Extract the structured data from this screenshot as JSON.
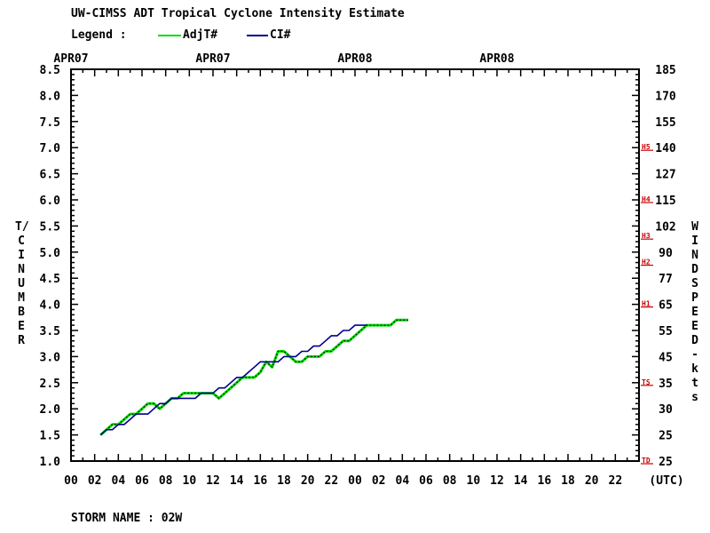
{
  "title": "UW-CIMSS ADT Tropical Cyclone Intensity Estimate",
  "legend": {
    "label": "Legend :",
    "entries": [
      {
        "name": "AdjT#",
        "color": "#00dd00"
      },
      {
        "name": "CI#",
        "color": "#00008b"
      }
    ]
  },
  "footer": {
    "storm_name": "STORM NAME : 02W"
  },
  "left_axis_title": "T/CI NUMBER",
  "right_axis_title": "WIND SPEED-kts",
  "utc_label": "(UTC)",
  "chart_data": {
    "type": "line",
    "title": "UW-CIMSS ADT Tropical Cyclone Intensity Estimate",
    "xlabel": "(UTC)",
    "ylabel": "T/CI NUMBER",
    "y2label": "WIND SPEED-kts",
    "x_unit": "hours since APR07 00 UTC",
    "xlim": [
      0,
      48
    ],
    "ylim": [
      1.0,
      8.5
    ],
    "date_labels": [
      {
        "label": "APR07",
        "hour": 0
      },
      {
        "label": "APR07",
        "hour": 12
      },
      {
        "label": "APR08",
        "hour": 24
      },
      {
        "label": "APR08",
        "hour": 36
      }
    ],
    "x_ticks": [
      "00",
      "02",
      "04",
      "06",
      "08",
      "10",
      "12",
      "14",
      "16",
      "18",
      "20",
      "22",
      "00",
      "02",
      "04",
      "06",
      "08",
      "10",
      "12",
      "14",
      "16",
      "18",
      "20",
      "22"
    ],
    "y_ticks": [
      "1.0",
      "1.5",
      "2.0",
      "2.5",
      "3.0",
      "3.5",
      "4.0",
      "4.5",
      "5.0",
      "5.5",
      "6.0",
      "6.5",
      "7.0",
      "7.5",
      "8.0",
      "8.5"
    ],
    "wind_ticks": [
      {
        "t": 1.0,
        "label": "25"
      },
      {
        "t": 1.5,
        "label": "25"
      },
      {
        "t": 2.0,
        "label": "30"
      },
      {
        "t": 2.5,
        "label": "35"
      },
      {
        "t": 3.0,
        "label": "45"
      },
      {
        "t": 3.5,
        "label": "55"
      },
      {
        "t": 4.0,
        "label": "65"
      },
      {
        "t": 4.5,
        "label": "77"
      },
      {
        "t": 5.0,
        "label": "90"
      },
      {
        "t": 5.5,
        "label": "102"
      },
      {
        "t": 6.0,
        "label": "115"
      },
      {
        "t": 6.5,
        "label": "127"
      },
      {
        "t": 7.0,
        "label": "140"
      },
      {
        "t": 7.5,
        "label": "155"
      },
      {
        "t": 8.0,
        "label": "170"
      },
      {
        "t": 8.5,
        "label": "185"
      }
    ],
    "category_marks": [
      {
        "label": "TD",
        "t": 1.0
      },
      {
        "label": "TS",
        "t": 2.5
      },
      {
        "label": "H1",
        "t": 4.0
      },
      {
        "label": "H2",
        "t": 4.8
      },
      {
        "label": "H3",
        "t": 5.3
      },
      {
        "label": "H4",
        "t": 6.0
      },
      {
        "label": "H5",
        "t": 7.0
      }
    ],
    "series": [
      {
        "name": "AdjT#",
        "color": "#00dd00",
        "points": [
          [
            2.5,
            1.5
          ],
          [
            3.0,
            1.6
          ],
          [
            3.5,
            1.7
          ],
          [
            4.0,
            1.7
          ],
          [
            4.5,
            1.8
          ],
          [
            5.0,
            1.9
          ],
          [
            5.5,
            1.9
          ],
          [
            6.0,
            2.0
          ],
          [
            6.5,
            2.1
          ],
          [
            7.0,
            2.1
          ],
          [
            7.5,
            2.0
          ],
          [
            8.0,
            2.1
          ],
          [
            8.5,
            2.2
          ],
          [
            9.0,
            2.2
          ],
          [
            9.5,
            2.3
          ],
          [
            10.0,
            2.3
          ],
          [
            10.5,
            2.3
          ],
          [
            11.0,
            2.3
          ],
          [
            11.5,
            2.3
          ],
          [
            12.0,
            2.3
          ],
          [
            12.5,
            2.2
          ],
          [
            13.0,
            2.3
          ],
          [
            13.5,
            2.4
          ],
          [
            14.0,
            2.5
          ],
          [
            14.5,
            2.6
          ],
          [
            15.0,
            2.6
          ],
          [
            15.5,
            2.6
          ],
          [
            16.0,
            2.7
          ],
          [
            16.5,
            2.9
          ],
          [
            17.0,
            2.8
          ],
          [
            17.5,
            3.1
          ],
          [
            18.0,
            3.1
          ],
          [
            18.5,
            3.0
          ],
          [
            19.0,
            2.9
          ],
          [
            19.5,
            2.9
          ],
          [
            20.0,
            3.0
          ],
          [
            20.5,
            3.0
          ],
          [
            21.0,
            3.0
          ],
          [
            21.5,
            3.1
          ],
          [
            22.0,
            3.1
          ],
          [
            22.5,
            3.2
          ],
          [
            23.0,
            3.3
          ],
          [
            23.5,
            3.3
          ],
          [
            24.0,
            3.4
          ],
          [
            24.5,
            3.5
          ],
          [
            25.0,
            3.6
          ],
          [
            25.5,
            3.6
          ],
          [
            26.0,
            3.6
          ],
          [
            26.5,
            3.6
          ],
          [
            27.0,
            3.6
          ],
          [
            27.5,
            3.7
          ],
          [
            28.0,
            3.7
          ],
          [
            28.5,
            3.7
          ]
        ]
      },
      {
        "name": "CI#",
        "color": "#00008b",
        "points": [
          [
            2.5,
            1.5
          ],
          [
            3.0,
            1.6
          ],
          [
            3.5,
            1.6
          ],
          [
            4.0,
            1.7
          ],
          [
            4.5,
            1.7
          ],
          [
            5.0,
            1.8
          ],
          [
            5.5,
            1.9
          ],
          [
            6.0,
            1.9
          ],
          [
            6.5,
            1.9
          ],
          [
            7.0,
            2.0
          ],
          [
            7.5,
            2.1
          ],
          [
            8.0,
            2.1
          ],
          [
            8.5,
            2.2
          ],
          [
            9.0,
            2.2
          ],
          [
            9.5,
            2.2
          ],
          [
            10.0,
            2.2
          ],
          [
            10.5,
            2.2
          ],
          [
            11.0,
            2.3
          ],
          [
            11.5,
            2.3
          ],
          [
            12.0,
            2.3
          ],
          [
            12.5,
            2.4
          ],
          [
            13.0,
            2.4
          ],
          [
            13.5,
            2.5
          ],
          [
            14.0,
            2.6
          ],
          [
            14.5,
            2.6
          ],
          [
            15.0,
            2.7
          ],
          [
            15.5,
            2.8
          ],
          [
            16.0,
            2.9
          ],
          [
            16.5,
            2.9
          ],
          [
            17.0,
            2.9
          ],
          [
            17.5,
            2.9
          ],
          [
            18.0,
            3.0
          ],
          [
            18.5,
            3.0
          ],
          [
            19.0,
            3.0
          ],
          [
            19.5,
            3.1
          ],
          [
            20.0,
            3.1
          ],
          [
            20.5,
            3.2
          ],
          [
            21.0,
            3.2
          ],
          [
            21.5,
            3.3
          ],
          [
            22.0,
            3.4
          ],
          [
            22.5,
            3.4
          ],
          [
            23.0,
            3.5
          ],
          [
            23.5,
            3.5
          ],
          [
            24.0,
            3.6
          ],
          [
            24.5,
            3.6
          ],
          [
            25.0,
            3.6
          ]
        ]
      }
    ]
  }
}
